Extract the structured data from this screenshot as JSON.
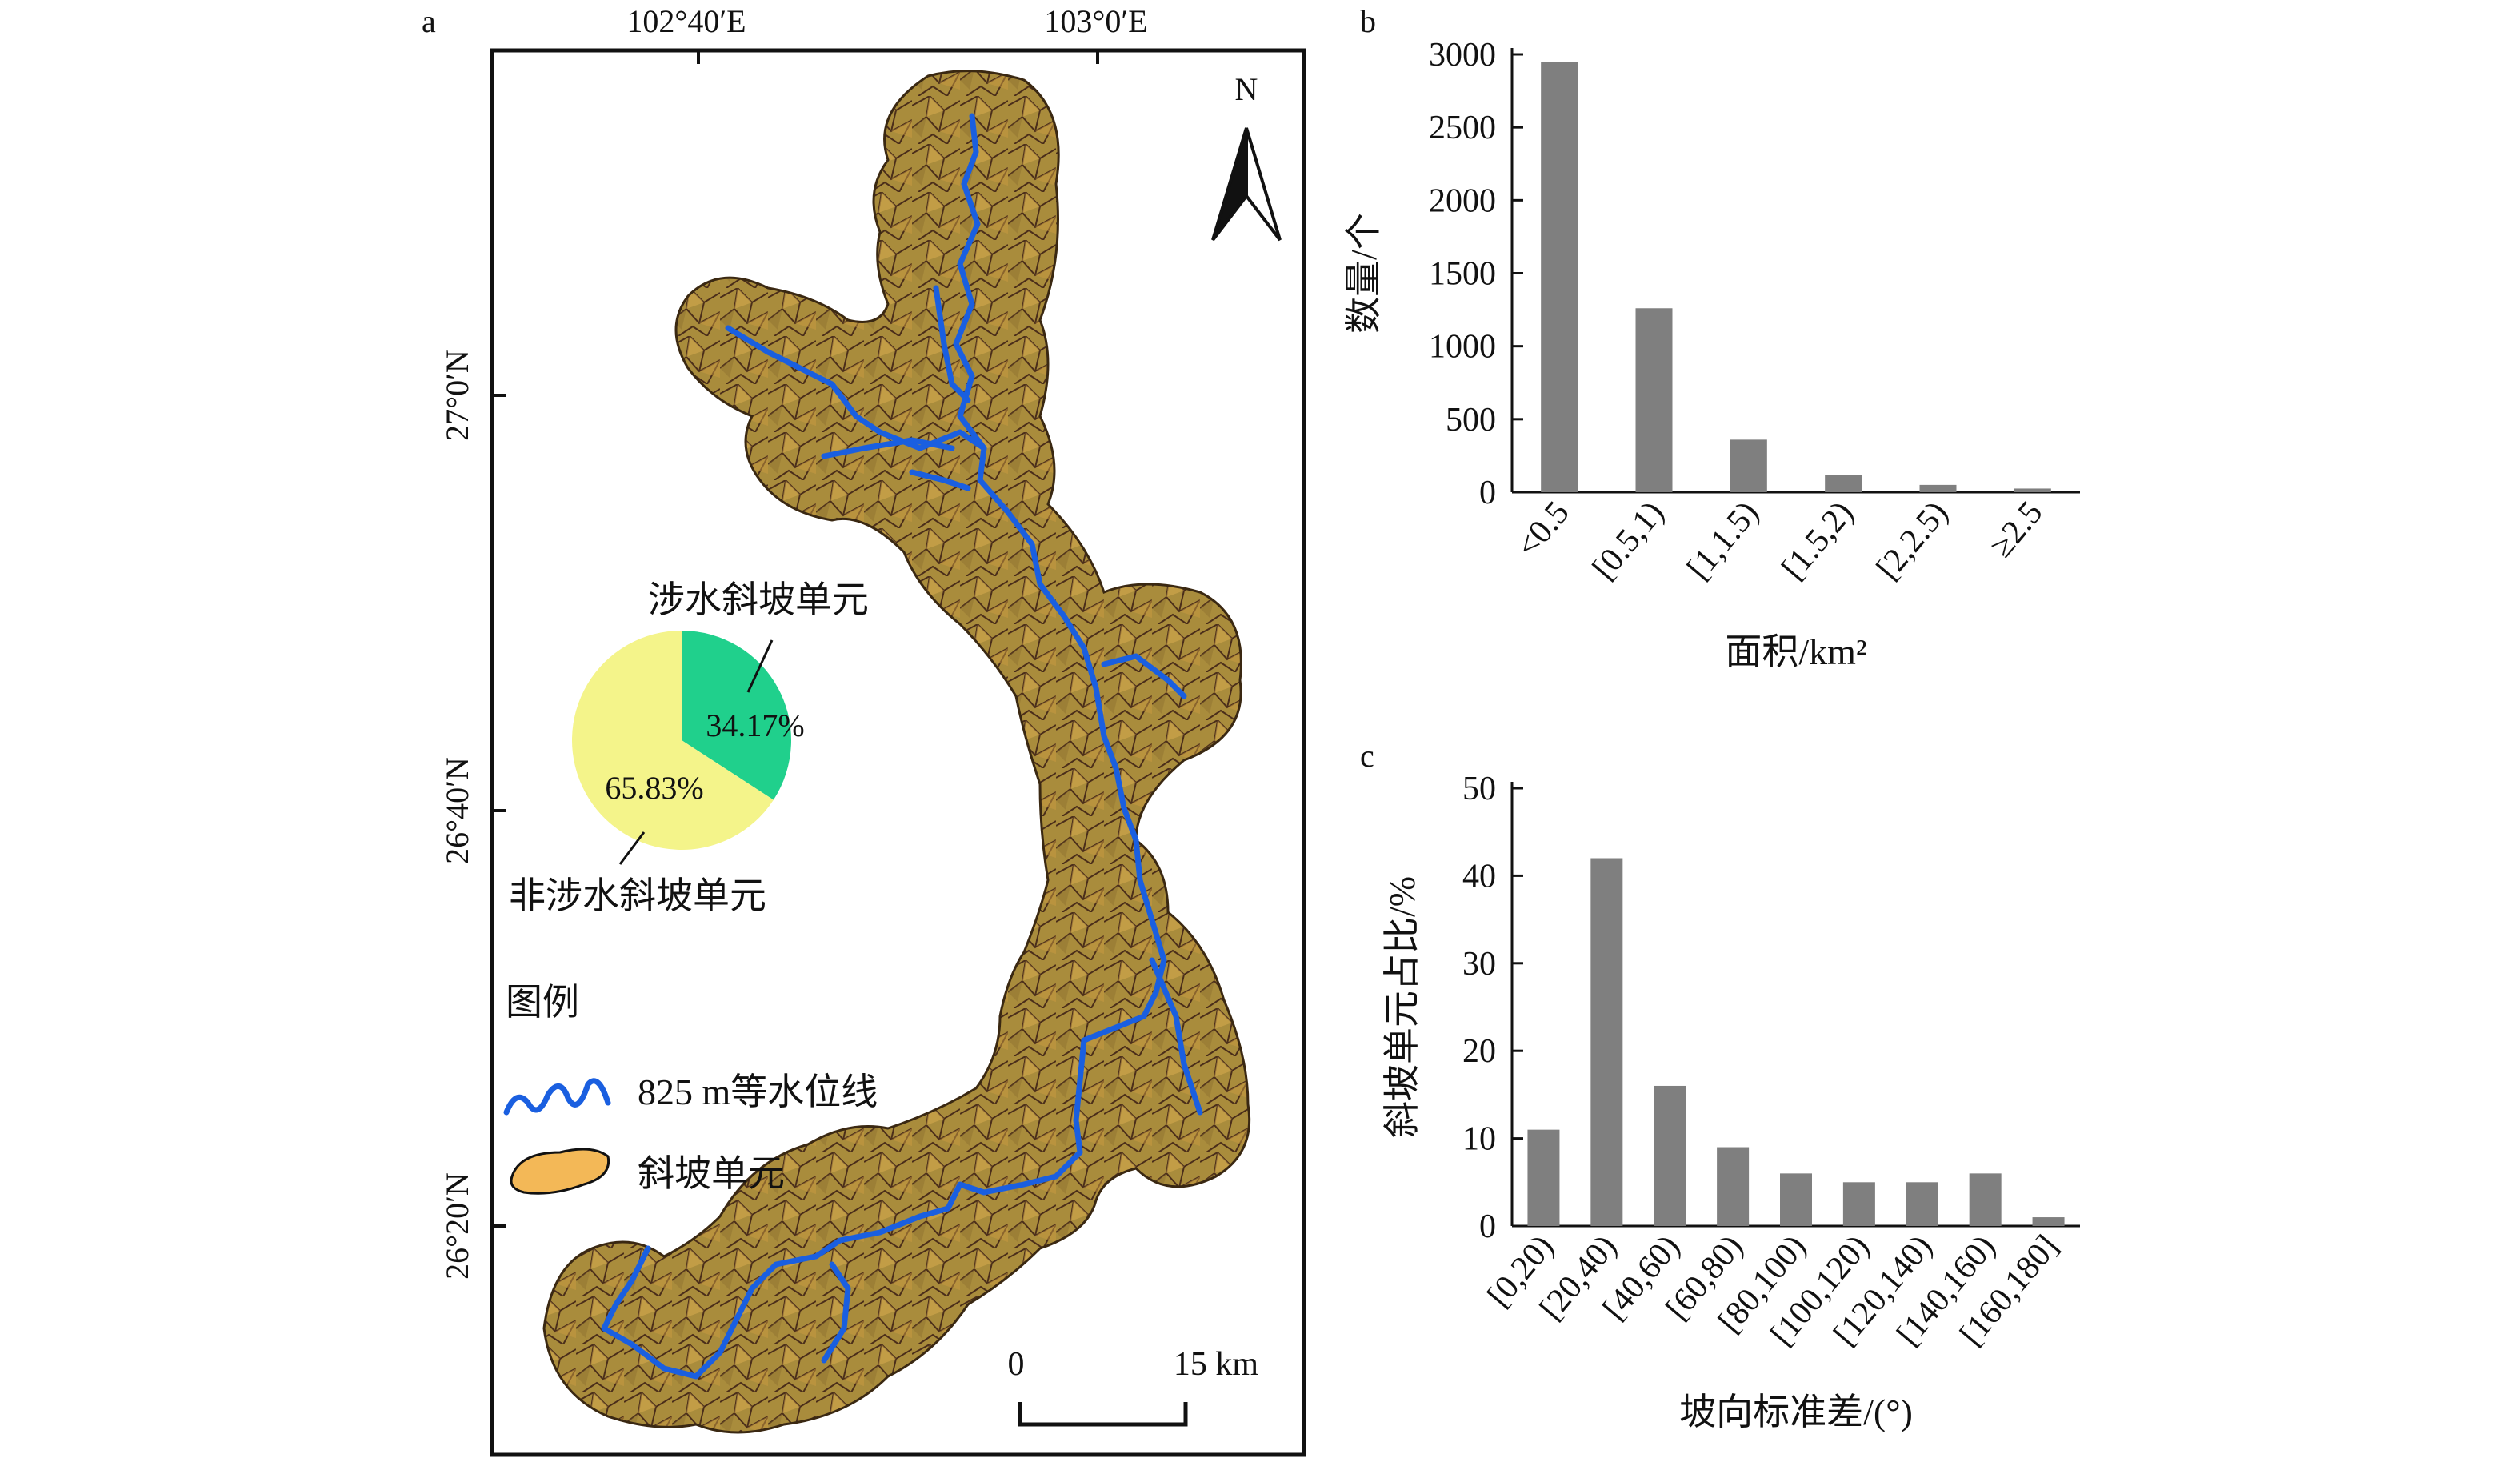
{
  "panel_map": {
    "letter": "a",
    "lon_ticks": [
      "102°40′E",
      "103°0′E"
    ],
    "lat_ticks": [
      "27°0′N",
      "26°40′N",
      "26°20′N"
    ],
    "north_label": "N",
    "scale": {
      "zero": "0",
      "end": "15 km"
    },
    "pie": {
      "label_top": "涉水斜坡单元",
      "label_bottom": "非涉水斜坡单元",
      "slices": [
        {
          "label": "34.17%",
          "value": 34.17,
          "color": "#20d08c"
        },
        {
          "label": "65.83%",
          "value": 65.83,
          "color": "#f4f48a"
        }
      ]
    },
    "legend": {
      "title": "图例",
      "items": [
        {
          "label": "825 m等水位线",
          "icon": "wavy-line-icon",
          "color": "#1a5fe0"
        },
        {
          "label": "斜坡单元",
          "icon": "blob-icon",
          "color": "#f3b857"
        }
      ]
    },
    "colors": {
      "unit_fill": "#a88a3a",
      "unit_light": "#d8a84a",
      "river": "#1a5fe0",
      "unit_line": "#4b2e1a"
    }
  },
  "chart_data": [
    {
      "panel": "b",
      "type": "bar",
      "categories": [
        "<0.5",
        "[0.5,1)",
        "[1,1.5)",
        "[1.5,2)",
        "[2,2.5)",
        "≥2.5"
      ],
      "values": [
        2950,
        1260,
        360,
        120,
        50,
        25
      ],
      "xlabel": "面积/km²",
      "ylabel": "数量/个",
      "ylim": [
        0,
        3000
      ],
      "yticks": [
        "0",
        "500",
        "1000",
        "1500",
        "2000",
        "2500",
        "3000"
      ],
      "bar_color": "#7f7f7f"
    },
    {
      "panel": "c",
      "type": "bar",
      "categories": [
        "[0,20)",
        "[20,40)",
        "[40,60)",
        "[60,80)",
        "[80,100)",
        "[100,120)",
        "[120,140)",
        "[140,160)",
        "[160,180]"
      ],
      "values": [
        11,
        42,
        16,
        9,
        6,
        5,
        5,
        6,
        1
      ],
      "xlabel": "坡向标准差/(°)",
      "ylabel": "斜坡单元占比/%",
      "ylim": [
        0,
        50
      ],
      "yticks": [
        "0",
        "10",
        "20",
        "30",
        "40",
        "50"
      ],
      "bar_color": "#7f7f7f"
    }
  ]
}
